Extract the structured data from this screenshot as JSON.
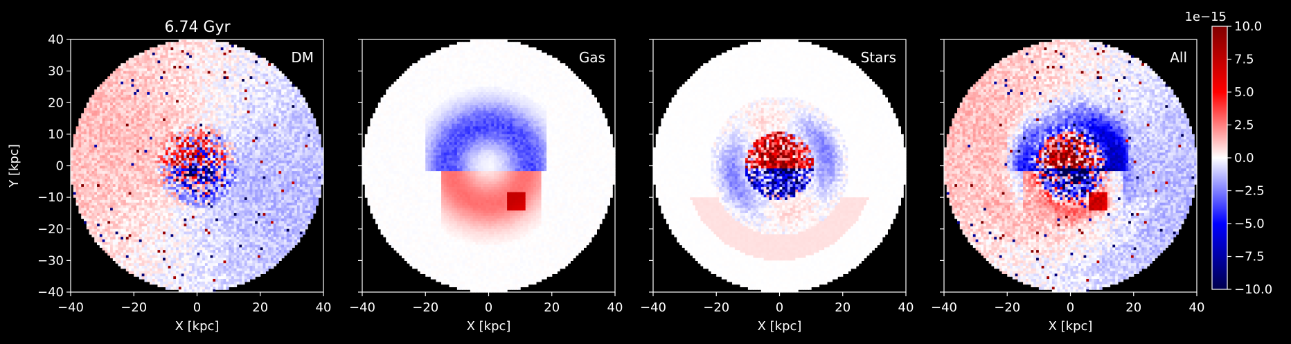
{
  "chart_data": {
    "type": "heatmap",
    "title": "6.74 Gyr",
    "panels": [
      {
        "label": "DM",
        "xlabel": "X [kpc]",
        "ylabel": "Y [kpc]",
        "pattern": "dm"
      },
      {
        "label": "Gas",
        "xlabel": "X [kpc]",
        "ylabel": "",
        "pattern": "gas"
      },
      {
        "label": "Stars",
        "xlabel": "X [kpc]",
        "ylabel": "",
        "pattern": "stars"
      },
      {
        "label": "All",
        "xlabel": "X [kpc]",
        "ylabel": "",
        "pattern": "all"
      }
    ],
    "xlim": [
      -40,
      40
    ],
    "ylim": [
      -40,
      40
    ],
    "xticks": [
      "−40",
      "−20",
      "0",
      "20",
      "40"
    ],
    "yticks": [
      "40",
      "30",
      "20",
      "10",
      "0",
      "−10",
      "−20",
      "−30",
      "−40"
    ],
    "xtick_values": [
      -40,
      -20,
      0,
      20,
      40
    ],
    "ytick_values": [
      40,
      30,
      20,
      10,
      0,
      -10,
      -20,
      -30,
      -40
    ],
    "disk_radius_kpc": 40,
    "colorbar": {
      "colormap": "seismic",
      "vmin": -10.0,
      "vmax": 10.0,
      "exponent_label": "1e−15",
      "ticks": [
        "10.0",
        "7.5",
        "5.0",
        "2.5",
        "0.0",
        "−2.5",
        "−5.0",
        "−7.5",
        "−10.0"
      ],
      "tick_values": [
        10.0,
        7.5,
        5.0,
        2.5,
        0.0,
        -2.5,
        -5.0,
        -7.5,
        -10.0
      ]
    },
    "colors": {
      "positive": "#800000",
      "zero": "#ffffff",
      "negative": "#00004c",
      "background": "#000000"
    }
  }
}
